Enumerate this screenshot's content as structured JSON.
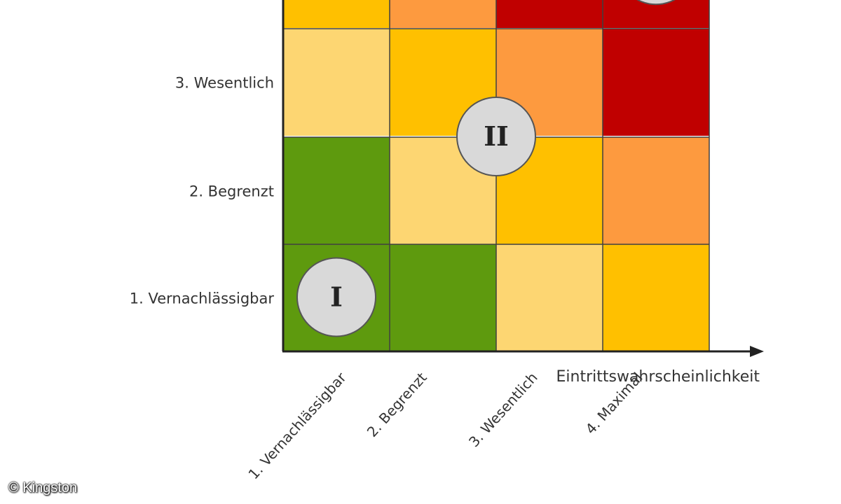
{
  "palette": {
    "green": "#5e9a0e",
    "light_yellow": "#fdd672",
    "yellow": "#ffc000",
    "orange": "#fd9a3f",
    "red": "#c00000",
    "grid_line": "#404040",
    "marker_fill": "#d9d9d9",
    "marker_stroke": "#555555"
  },
  "matrix": {
    "rows_top_to_bottom": [
      {
        "cells": [
          "yellow",
          "orange",
          "red",
          "red"
        ]
      },
      {
        "label": "3. Wesentlich",
        "cells": [
          "light_yellow",
          "yellow",
          "orange",
          "red"
        ]
      },
      {
        "label": "2. Begrenzt",
        "cells": [
          "green",
          "light_yellow",
          "yellow",
          "orange"
        ]
      },
      {
        "label": "1. Vernachlässigbar",
        "cells": [
          "green",
          "green",
          "light_yellow",
          "yellow"
        ]
      }
    ],
    "x_axis": {
      "title": "Eintrittswahrscheinlichkeit",
      "categories": [
        "1. Vernachlässigbar",
        "2. Begrenzt",
        "3. Wesentlich",
        "4. Maximal"
      ]
    },
    "markers": [
      {
        "label": "I",
        "x_category": 1,
        "y_category": 1
      },
      {
        "label": "II",
        "x_category": 2.5,
        "y_category": 2.5
      },
      {
        "label": "",
        "x_category": 4,
        "y_category": 4.1
      }
    ]
  },
  "credit": "© Kingston"
}
